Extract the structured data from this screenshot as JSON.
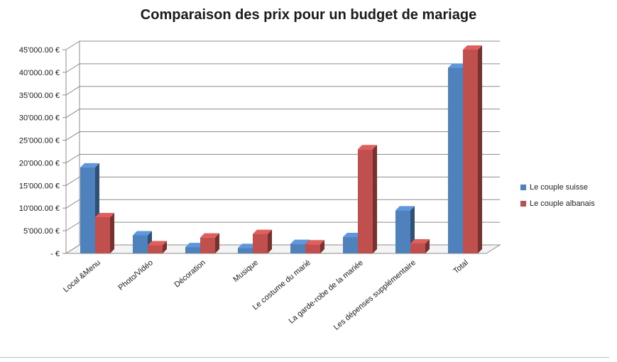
{
  "chart_data": {
    "type": "bar",
    "title": "Comparaison des prix pour un budget de mariage",
    "xlabel": "",
    "ylabel": "",
    "ylim": [
      0,
      45000
    ],
    "ytick_values": [
      0,
      5000,
      10000,
      15000,
      20000,
      25000,
      30000,
      35000,
      40000,
      45000
    ],
    "ytick_labels": [
      "-  €",
      "5'000.00 €",
      "10'000.00 €",
      "15'000.00 €",
      "20'000.00 €",
      "25'000.00 €",
      "30'000.00 €",
      "35'000.00 €",
      "40'000.00 €",
      "45'000.00 €"
    ],
    "categories": [
      "Local &Menu",
      "Photo/Vidéo",
      "Décoration",
      "Musique",
      "Le costume du marié",
      "La garde-robe de la mariée",
      "Les dépenses supplémentaire",
      "Total"
    ],
    "series": [
      {
        "name": "Le couple suisse",
        "color": "#4f81bd",
        "values": [
          19000,
          4000,
          1400,
          1200,
          2100,
          3600,
          9500,
          41000
        ]
      },
      {
        "name": "Le couple albanais",
        "color": "#c0504d",
        "values": [
          8000,
          1800,
          3500,
          4300,
          2000,
          23000,
          2200,
          45000
        ]
      }
    ],
    "grid": true,
    "legend_position": "right"
  }
}
